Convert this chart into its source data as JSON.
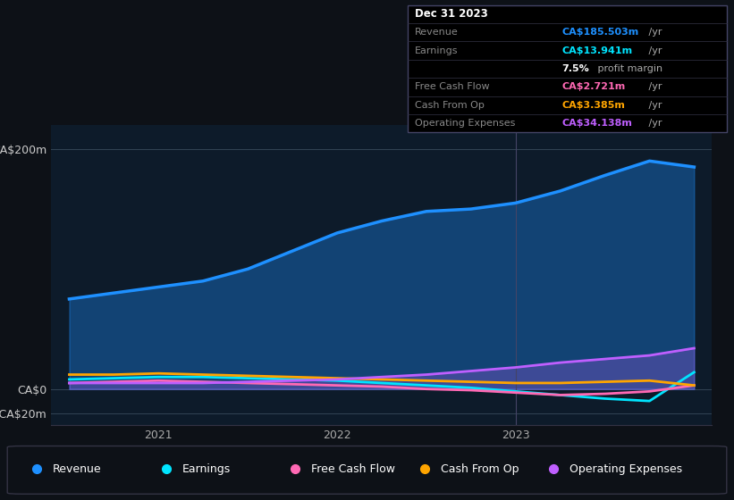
{
  "bg_color": "#0d1117",
  "plot_bg_color": "#0d1b2a",
  "x_ticks": [
    2021,
    2022,
    2023
  ],
  "y_ticks": [
    -20,
    0,
    200
  ],
  "y_labels": [
    "-CA$20m",
    "CA$0",
    "CA$200m"
  ],
  "series": {
    "Revenue": {
      "color": "#1e90ff",
      "fill": true,
      "fill_alpha": 0.35,
      "x": [
        2020.5,
        2020.75,
        2021.0,
        2021.25,
        2021.5,
        2021.75,
        2022.0,
        2022.25,
        2022.5,
        2022.75,
        2023.0,
        2023.25,
        2023.5,
        2023.75,
        2024.0
      ],
      "y": [
        75,
        80,
        85,
        90,
        100,
        115,
        130,
        140,
        148,
        150,
        155,
        165,
        178,
        190,
        185
      ]
    },
    "Earnings": {
      "color": "#00e5ff",
      "fill": false,
      "x": [
        2020.5,
        2020.75,
        2021.0,
        2021.25,
        2021.5,
        2021.75,
        2022.0,
        2022.25,
        2022.5,
        2022.75,
        2023.0,
        2023.25,
        2023.5,
        2023.75,
        2024.0
      ],
      "y": [
        8,
        9,
        10,
        10,
        9,
        8,
        7,
        5,
        3,
        1,
        -2,
        -5,
        -8,
        -10,
        14
      ]
    },
    "Free Cash Flow": {
      "color": "#ff69b4",
      "fill": false,
      "x": [
        2020.5,
        2020.75,
        2021.0,
        2021.25,
        2021.5,
        2021.75,
        2022.0,
        2022.25,
        2022.5,
        2022.75,
        2023.0,
        2023.25,
        2023.5,
        2023.75,
        2024.0
      ],
      "y": [
        5,
        6,
        7,
        6,
        5,
        4,
        3,
        2,
        0,
        -1,
        -3,
        -5,
        -4,
        -2,
        3
      ]
    },
    "Cash From Op": {
      "color": "#ffa500",
      "fill": false,
      "x": [
        2020.5,
        2020.75,
        2021.0,
        2021.25,
        2021.5,
        2021.75,
        2022.0,
        2022.25,
        2022.5,
        2022.75,
        2023.0,
        2023.25,
        2023.5,
        2023.75,
        2024.0
      ],
      "y": [
        12,
        12,
        13,
        12,
        11,
        10,
        9,
        8,
        7,
        6,
        5,
        5,
        6,
        7,
        3
      ]
    },
    "Operating Expenses": {
      "color": "#bf5fff",
      "fill": true,
      "fill_alpha": 0.25,
      "x": [
        2020.5,
        2020.75,
        2021.0,
        2021.25,
        2021.5,
        2021.75,
        2022.0,
        2022.25,
        2022.5,
        2022.75,
        2023.0,
        2023.25,
        2023.5,
        2023.75,
        2024.0
      ],
      "y": [
        5,
        5,
        5,
        5,
        6,
        7,
        8,
        10,
        12,
        15,
        18,
        22,
        25,
        28,
        34
      ]
    }
  },
  "table_rows": [
    {
      "label": "Dec 31 2023",
      "value": null,
      "value_color": null,
      "is_header": true
    },
    {
      "label": "Revenue",
      "value": "CA$185.503m /yr",
      "value_color": "#1e90ff",
      "is_header": false
    },
    {
      "label": "Earnings",
      "value": "CA$13.941m /yr",
      "value_color": "#00e5ff",
      "is_header": false
    },
    {
      "label": "",
      "value": "7.5% profit margin",
      "value_color": null,
      "is_header": false
    },
    {
      "label": "Free Cash Flow",
      "value": "CA$2.721m /yr",
      "value_color": "#ff69b4",
      "is_header": false
    },
    {
      "label": "Cash From Op",
      "value": "CA$3.385m /yr",
      "value_color": "#ffa500",
      "is_header": false
    },
    {
      "label": "Operating Expenses",
      "value": "CA$34.138m /yr",
      "value_color": "#bf5fff",
      "is_header": false
    }
  ],
  "legend_items": [
    {
      "label": "Revenue",
      "color": "#1e90ff"
    },
    {
      "label": "Earnings",
      "color": "#00e5ff"
    },
    {
      "label": "Free Cash Flow",
      "color": "#ff69b4"
    },
    {
      "label": "Cash From Op",
      "color": "#ffa500"
    },
    {
      "label": "Operating Expenses",
      "color": "#bf5fff"
    }
  ],
  "ylim": [
    -30,
    220
  ],
  "xlim": [
    2020.4,
    2024.1
  ],
  "figsize": [
    8.21,
    5.6
  ],
  "dpi": 100
}
